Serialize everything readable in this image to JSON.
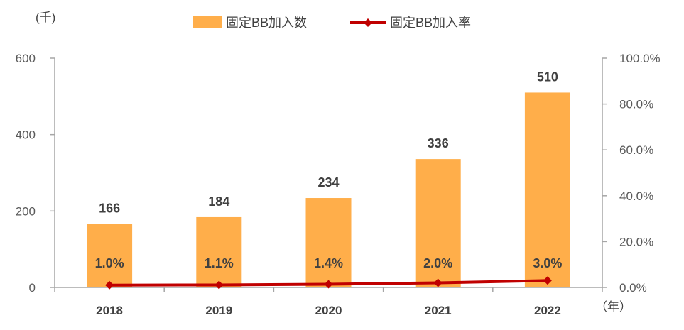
{
  "colors": {
    "bar": "#FFAE4A",
    "line": "#C00000",
    "axis": "#A6A6A6"
  },
  "chart_data": {
    "type": "bar",
    "categories": [
      "2018",
      "2019",
      "2020",
      "2021",
      "2022"
    ],
    "series": [
      {
        "name": "固定BB加入数",
        "type": "bar",
        "axis": "left",
        "values": [
          166,
          184,
          234,
          336,
          510
        ],
        "labels": [
          "166",
          "184",
          "234",
          "336",
          "510"
        ]
      },
      {
        "name": "固定BB加入率",
        "type": "line",
        "axis": "right",
        "values": [
          1.0,
          1.1,
          1.4,
          2.0,
          3.0
        ],
        "labels": [
          "1.0%",
          "1.1%",
          "1.4%",
          "2.0%",
          "3.0%"
        ]
      }
    ],
    "ylim": [
      0,
      600
    ],
    "y_ticks": [
      "0",
      "200",
      "400",
      "600"
    ],
    "y2lim": [
      0,
      100
    ],
    "y2_ticks": [
      "0.0%",
      "20.0%",
      "40.0%",
      "60.0%",
      "80.0%",
      "100.0%"
    ],
    "ylabel": "(千)",
    "xlabel": "（年）",
    "legend_position": "top-center",
    "grid": false
  }
}
